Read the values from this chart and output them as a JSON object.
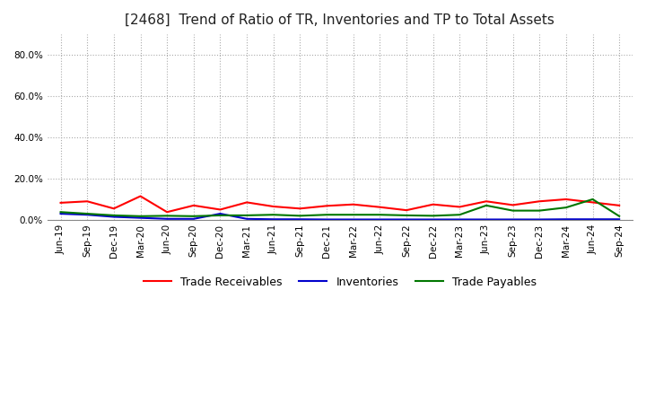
{
  "title": "[2468]  Trend of Ratio of TR, Inventories and TP to Total Assets",
  "title_fontsize": 11,
  "ylim": [
    0,
    0.9
  ],
  "yticks": [
    0.0,
    0.2,
    0.4,
    0.6,
    0.8
  ],
  "ytick_labels": [
    "0.0%",
    "20.0%",
    "40.0%",
    "60.0%",
    "80.0%"
  ],
  "x_labels": [
    "Jun-19",
    "Sep-19",
    "Dec-19",
    "Mar-20",
    "Jun-20",
    "Sep-20",
    "Dec-20",
    "Mar-21",
    "Jun-21",
    "Sep-21",
    "Dec-21",
    "Mar-22",
    "Jun-22",
    "Sep-22",
    "Dec-22",
    "Mar-23",
    "Jun-23",
    "Sep-23",
    "Dec-23",
    "Mar-24",
    "Jun-24",
    "Sep-24"
  ],
  "trade_receivables": [
    0.083,
    0.09,
    0.055,
    0.115,
    0.038,
    0.07,
    0.05,
    0.085,
    0.065,
    0.055,
    0.068,
    0.075,
    0.062,
    0.047,
    0.075,
    0.063,
    0.09,
    0.072,
    0.09,
    0.1,
    0.085,
    0.07
  ],
  "inventories": [
    0.03,
    0.025,
    0.015,
    0.01,
    0.005,
    0.005,
    0.03,
    0.005,
    0.003,
    0.003,
    0.002,
    0.002,
    0.002,
    0.002,
    0.002,
    0.002,
    0.002,
    0.002,
    0.002,
    0.003,
    0.003,
    0.003
  ],
  "trade_payables": [
    0.038,
    0.03,
    0.022,
    0.018,
    0.02,
    0.018,
    0.022,
    0.022,
    0.025,
    0.02,
    0.025,
    0.025,
    0.025,
    0.022,
    0.02,
    0.025,
    0.07,
    0.045,
    0.045,
    0.06,
    0.1,
    0.018
  ],
  "tr_color": "#FF0000",
  "inv_color": "#0000CC",
  "tp_color": "#007700",
  "tr_label": "Trade Receivables",
  "inv_label": "Inventories",
  "tp_label": "Trade Payables",
  "line_width": 1.5,
  "background_color": "#FFFFFF",
  "grid_color": "#AAAAAA",
  "legend_fontsize": 9,
  "tick_fontsize": 7.5
}
